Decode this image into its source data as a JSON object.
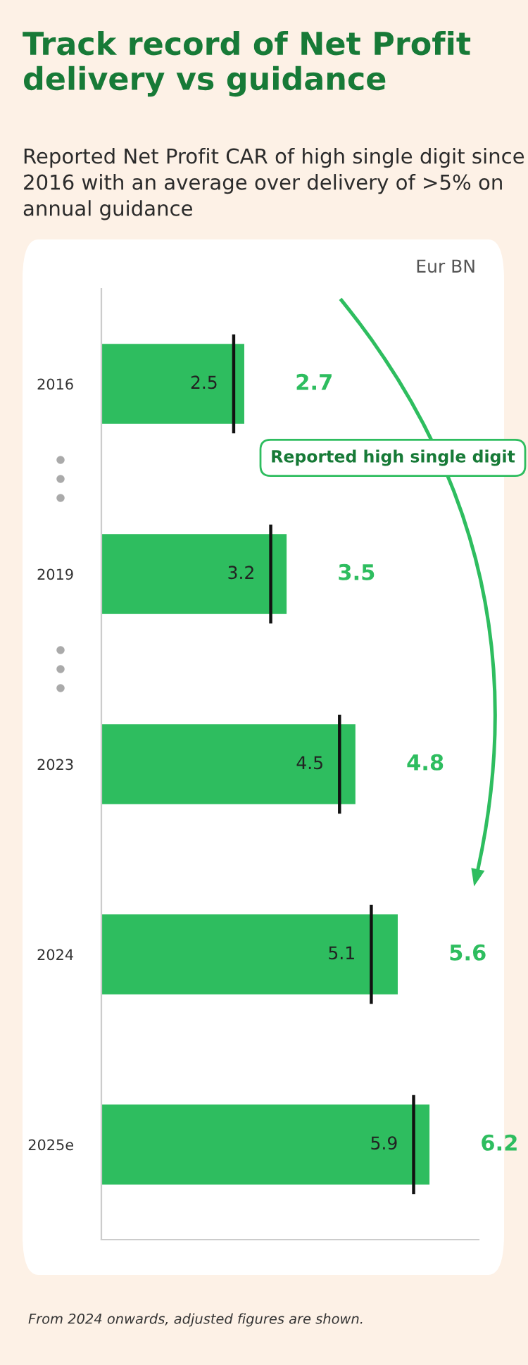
{
  "chart_data": {
    "type": "bar",
    "orientation": "horizontal",
    "stacked": true,
    "title": "Track record of Net Profit delivery vs guidance",
    "subtitle": "Reported Net Profit CAR of high single digit since 2016 with an average over delivery of >5% on annual guidance",
    "categories": [
      "2016",
      "2019",
      "2023",
      "2024",
      "2025e"
    ],
    "series": [
      {
        "color": "#2ebd5f",
        "values": [
          2.5,
          3.2,
          4.5,
          5.1,
          5.9
        ],
        "value_labels": [
          "2.5",
          "3.2",
          "4.5",
          "5.1",
          "5.9"
        ]
      },
      {
        "color": "#2ebd5f",
        "values": [
          0.2,
          0.3,
          0.3,
          0.5,
          0.3
        ]
      }
    ],
    "totals": [
      "2.7",
      "3.5",
      "4.8",
      "5.6",
      "6.2"
    ],
    "tick_labels": "y",
    "grid": false,
    "annotations": [
      "Eur BN",
      "Reported high single digit",
      "From 2024 onwards, adjusted figures are shown."
    ]
  }
}
